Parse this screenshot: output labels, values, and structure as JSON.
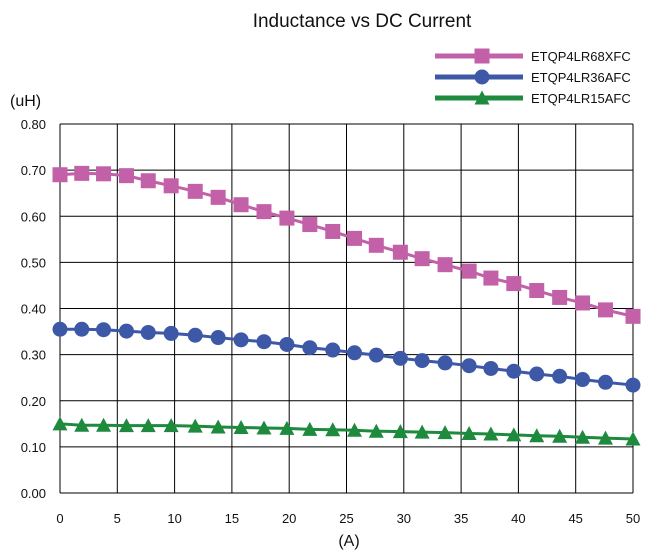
{
  "chart_data": {
    "type": "line",
    "title": "Inductance vs DC Current",
    "xlabel": "(A)",
    "ylabel": "(uH)",
    "xlim": [
      0,
      50
    ],
    "ylim": [
      0,
      0.8
    ],
    "x_ticks": [
      0,
      5,
      10,
      15,
      20,
      25,
      30,
      35,
      40,
      45,
      50
    ],
    "x_tick_labels": [
      "0",
      "5",
      "10",
      "15",
      "20",
      "25",
      "30",
      "35",
      "40",
      "45",
      "50"
    ],
    "y_ticks": [
      0,
      0.1,
      0.2,
      0.3,
      0.4,
      0.5,
      0.6,
      0.7,
      0.8
    ],
    "y_tick_labels": [
      "0.00",
      "0.10",
      "0.20",
      "0.30",
      "0.40",
      "0.50",
      "0.60",
      "0.70",
      "0.80"
    ],
    "grid": true,
    "legend_position": "top-right",
    "x": [
      0,
      1.9,
      3.8,
      5.8,
      7.7,
      9.7,
      11.8,
      13.8,
      15.8,
      17.8,
      19.8,
      21.8,
      23.8,
      25.7,
      27.6,
      29.7,
      31.6,
      33.6,
      35.7,
      37.6,
      39.6,
      41.6,
      43.6,
      45.6,
      47.6,
      50.0
    ],
    "series": [
      {
        "name": "ETQP4LR68XFC",
        "color": "#c260a8",
        "marker": "square",
        "values": [
          0.69,
          0.693,
          0.692,
          0.688,
          0.677,
          0.666,
          0.654,
          0.641,
          0.625,
          0.61,
          0.596,
          0.582,
          0.567,
          0.552,
          0.537,
          0.522,
          0.508,
          0.495,
          0.481,
          0.466,
          0.454,
          0.439,
          0.424,
          0.412,
          0.397,
          0.383
        ]
      },
      {
        "name": "ETQP4LR36AFC",
        "color": "#3c58a6",
        "marker": "circle",
        "values": [
          0.355,
          0.355,
          0.354,
          0.351,
          0.348,
          0.346,
          0.342,
          0.337,
          0.332,
          0.328,
          0.322,
          0.315,
          0.31,
          0.304,
          0.299,
          0.292,
          0.287,
          0.282,
          0.276,
          0.27,
          0.264,
          0.258,
          0.253,
          0.246,
          0.24,
          0.234
        ]
      },
      {
        "name": "ETQP4LR15AFC",
        "color": "#1e8a3e",
        "marker": "triangle",
        "values": [
          0.15,
          0.147,
          0.147,
          0.146,
          0.146,
          0.146,
          0.145,
          0.143,
          0.142,
          0.141,
          0.14,
          0.138,
          0.137,
          0.136,
          0.134,
          0.133,
          0.132,
          0.131,
          0.129,
          0.128,
          0.126,
          0.124,
          0.123,
          0.121,
          0.119,
          0.117
        ]
      }
    ]
  }
}
